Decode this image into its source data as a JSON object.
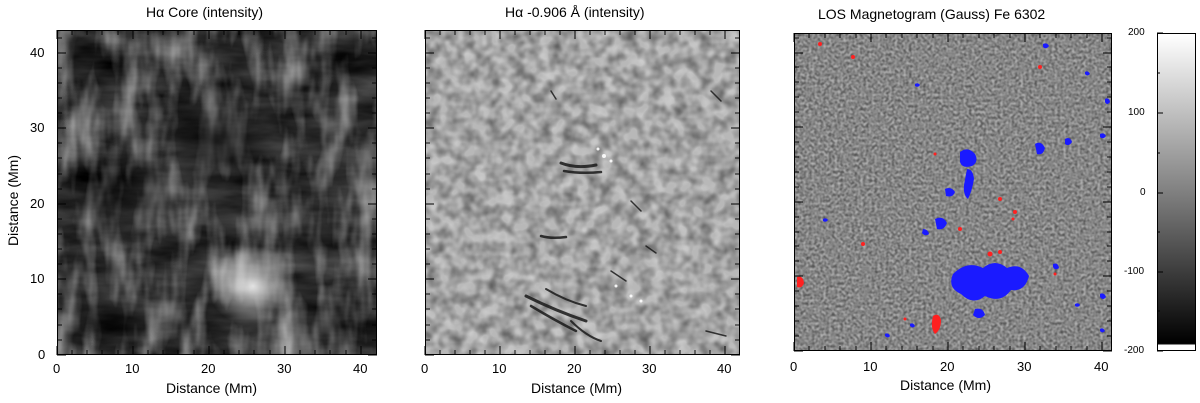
{
  "panels": [
    {
      "title": "Hα Core (intensity)",
      "xlabel": "Distance (Mm)",
      "ylabel": "Distance (Mm)"
    },
    {
      "title": "Hα -0.906 Å (intensity)",
      "xlabel": "Distance (Mm)"
    },
    {
      "title": "LOS Magnetogram (Gauss) Fe 6302",
      "xlabel": "Distance (Mm)"
    }
  ],
  "x_ticks": [
    "0",
    "10",
    "20",
    "30",
    "40"
  ],
  "y_ticks": [
    "0",
    "10",
    "20",
    "30",
    "40"
  ],
  "x_range_mm": [
    0,
    42
  ],
  "y_range_mm": [
    0,
    43
  ],
  "colorbar": {
    "ticks": [
      "200",
      "100",
      "0",
      "-100",
      "-200"
    ],
    "range": [
      -200,
      200
    ],
    "colors": {
      "positive_saturation": "#ff2020",
      "negative_saturation": "#1a1aff"
    }
  }
}
